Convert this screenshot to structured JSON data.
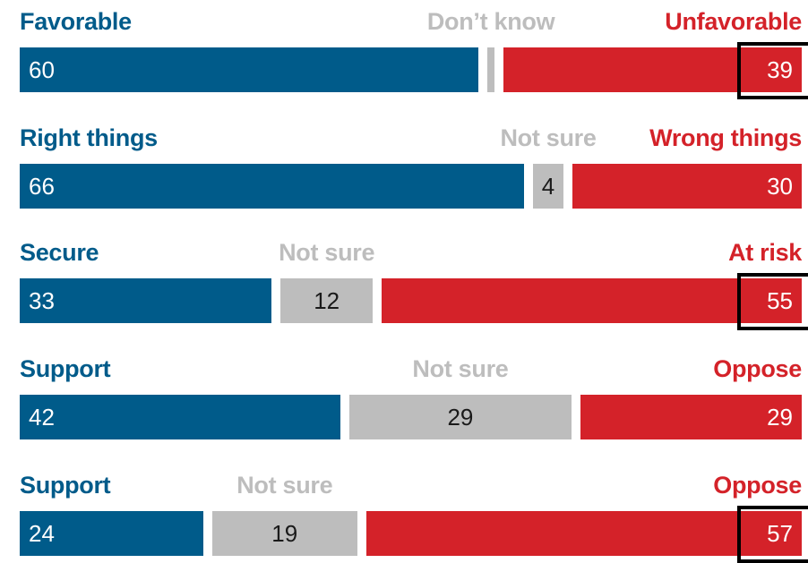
{
  "colors": {
    "favorable": "#005b8a",
    "neutral": "#bdbdbd",
    "unfavorable": "#d42229",
    "highlight": "#000000"
  },
  "chart_data": {
    "type": "bar",
    "stacked": true,
    "orientation": "horizontal",
    "rows": [
      {
        "left_label": "Favorable",
        "mid_label": "Don’t know",
        "right_label": "Unfavorable",
        "left": 60,
        "mid": 1,
        "right": 39,
        "show_mid_value": false,
        "highlight": "right"
      },
      {
        "left_label": "Right things",
        "mid_label": "Not sure",
        "right_label": "Wrong things",
        "left": 66,
        "mid": 4,
        "right": 30,
        "show_mid_value": true,
        "highlight": null
      },
      {
        "left_label": "Secure",
        "mid_label": "Not sure",
        "right_label": "At risk",
        "left": 33,
        "mid": 12,
        "right": 55,
        "show_mid_value": true,
        "highlight": "right"
      },
      {
        "left_label": "Support",
        "mid_label": "Not sure",
        "right_label": "Oppose",
        "left": 42,
        "mid": 29,
        "right": 29,
        "show_mid_value": true,
        "highlight": null
      },
      {
        "left_label": "Support",
        "mid_label": "Not sure",
        "right_label": "Oppose",
        "left": 24,
        "mid": 19,
        "right": 57,
        "show_mid_value": true,
        "highlight": "right"
      }
    ]
  }
}
